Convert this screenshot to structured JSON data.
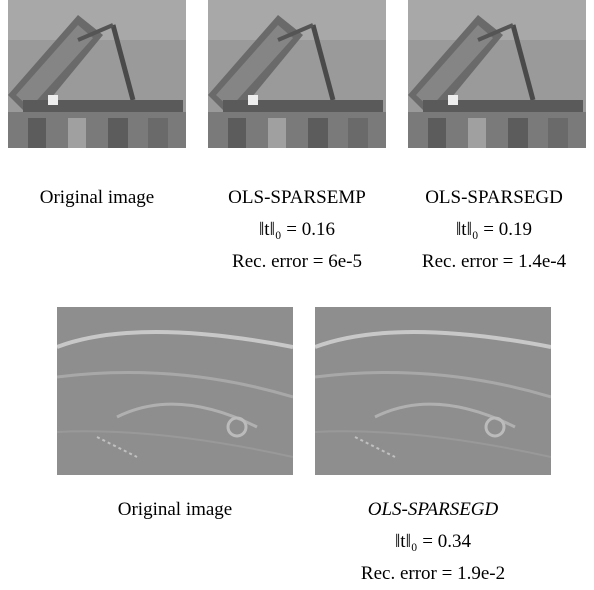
{
  "top_row": [
    {
      "caption": "Original image"
    },
    {
      "caption": "OLS-SPARSEMP",
      "sparsity": "‖t‖₀ = 0.16",
      "error": "Rec. error = 6e-5"
    },
    {
      "caption": "OLS-SPARSEGD",
      "sparsity": "‖t‖₀ = 0.19",
      "error": "Rec. error = 1.4e-4"
    }
  ],
  "bottom_row": [
    {
      "caption": "Original image"
    },
    {
      "caption": "OLS-SPARSEGD",
      "sparsity": "‖t‖₀ = 0.34",
      "error": "Rec. error = 1.9e-2"
    }
  ]
}
